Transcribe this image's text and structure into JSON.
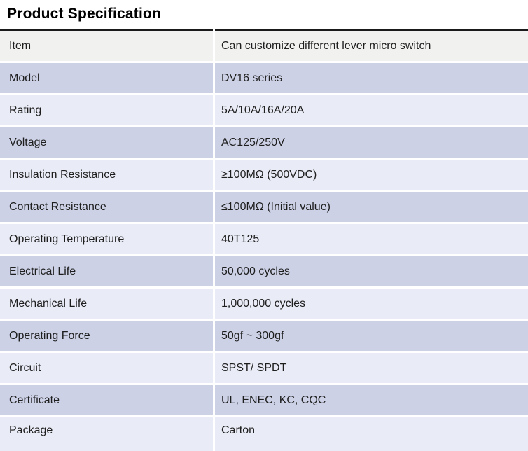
{
  "page": {
    "title": "Product Specification"
  },
  "colors": {
    "row_lavender": "#ccd1e6",
    "row_light": "#e9ebf6",
    "row_header_gray": "#f1f1f0",
    "divider_black": "#1a1a1a",
    "text": "#1e1e1e"
  },
  "table": {
    "rows": [
      {
        "label": "Item",
        "value": "Can customize different lever micro switch"
      },
      {
        "label": "Model",
        "value": "DV16 series"
      },
      {
        "label": "Rating",
        "value": "5A/10A/16A/20A"
      },
      {
        "label": "Voltage",
        "value": "AC125/250V"
      },
      {
        "label": "Insulation Resistance",
        "value": "≥100MΩ (500VDC)"
      },
      {
        "label": "Contact Resistance",
        "value": "≤100MΩ (Initial value)"
      },
      {
        "label": "Operating Temperature",
        "value": "40T125"
      },
      {
        "label": "Electrical Life",
        "value": "50,000 cycles"
      },
      {
        "label": "Mechanical Life",
        "value": "1,000,000 cycles"
      },
      {
        "label": "Operating Force",
        "value": "50gf ~ 300gf"
      },
      {
        "label": "Circuit",
        "value": "SPST/ SPDT"
      },
      {
        "label": "Certificate",
        "value": "UL, ENEC, KC, CQC"
      },
      {
        "label": "Package",
        "value": "Carton"
      }
    ]
  }
}
